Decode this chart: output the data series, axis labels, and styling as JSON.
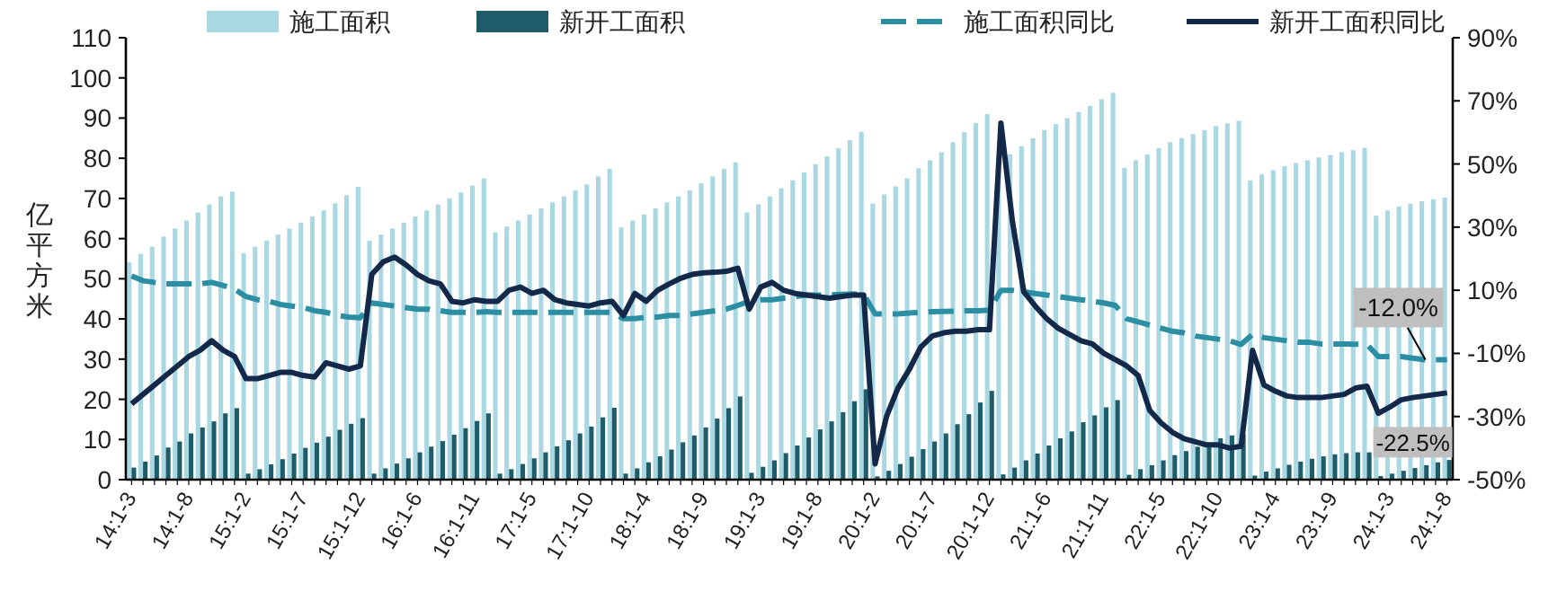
{
  "chart_data": {
    "type": "bar",
    "ylabel": "亿平方米",
    "legend": "top",
    "categories": [
      "14:1-3",
      null,
      null,
      null,
      null,
      "14:1-8",
      null,
      null,
      null,
      null,
      "15:1-2",
      null,
      null,
      null,
      null,
      "15:1-7",
      null,
      null,
      null,
      null,
      "15:1-12",
      null,
      null,
      null,
      null,
      "16:1-6",
      null,
      null,
      null,
      null,
      "16:1-11",
      null,
      null,
      null,
      null,
      "17:1-5",
      null,
      null,
      null,
      null,
      "17:1-10",
      null,
      null,
      null,
      null,
      "18:1-4",
      null,
      null,
      null,
      null,
      "18:1-9",
      null,
      null,
      null,
      null,
      "19:1-3",
      null,
      null,
      null,
      null,
      "19:1-8",
      null,
      null,
      null,
      null,
      "20:1-2",
      null,
      null,
      null,
      null,
      "20:1-7",
      null,
      null,
      null,
      null,
      "20:1-12",
      null,
      null,
      null,
      null,
      "21:1-6",
      null,
      null,
      null,
      null,
      "21:1-11",
      null,
      null,
      null,
      null,
      "22:1-5",
      null,
      null,
      null,
      null,
      "22:1-10",
      null,
      null,
      null,
      null,
      "23:1-4",
      null,
      null,
      null,
      null,
      "23:1-9",
      null,
      null,
      null,
      null,
      "24:1-3",
      null,
      null,
      null,
      null,
      "24:1-8"
    ],
    "ylim": [
      0,
      110
    ],
    "yticks": [
      0,
      10,
      20,
      30,
      40,
      50,
      60,
      70,
      80,
      90,
      100,
      110
    ],
    "y2lim": [
      -50,
      90
    ],
    "y2ticks": [
      {
        "value": -50,
        "label": "-50%"
      },
      {
        "value": -30,
        "label": "-30%"
      },
      {
        "value": -10,
        "label": "-10%"
      },
      {
        "value": 10,
        "label": "10%"
      },
      {
        "value": 30,
        "label": "30%"
      },
      {
        "value": 50,
        "label": "50%"
      },
      {
        "value": 70,
        "label": "70%"
      },
      {
        "value": 90,
        "label": "90%"
      }
    ],
    "series": [
      {
        "name": "施工面积",
        "color": "#a9d8e3",
        "values": [
          54.1,
          56.2,
          58,
          60.5,
          62.5,
          64.5,
          66.5,
          68.5,
          70.5,
          71.7,
          56.4,
          58,
          59.5,
          61,
          62.5,
          64,
          65.5,
          67,
          68.8,
          70.8,
          72.9,
          59.5,
          61,
          62.5,
          64,
          65.5,
          67,
          68.5,
          70,
          71.5,
          73.2,
          75,
          61.6,
          63,
          64.5,
          66,
          67.5,
          69,
          70.5,
          72,
          73.5,
          75.5,
          77.4,
          62.8,
          64.5,
          66,
          67.5,
          69,
          70.5,
          72,
          73.8,
          75.5,
          77.3,
          79,
          66.5,
          68.5,
          70.5,
          72.5,
          74.5,
          76.5,
          78.5,
          80.5,
          82.5,
          84.5,
          86.6,
          68.7,
          71,
          73,
          75,
          77.5,
          79.5,
          81.5,
          84,
          86.5,
          88.8,
          91,
          79,
          81,
          83,
          85,
          87,
          88.5,
          90,
          91.5,
          93,
          94.7,
          96.3,
          77.6,
          79.5,
          81,
          82.5,
          84,
          85,
          86,
          87,
          88,
          88.7,
          89.3,
          74.5,
          76,
          77,
          78,
          78.8,
          79.5,
          80.2,
          80.8,
          81.5,
          82,
          82.6,
          65.7,
          67,
          68,
          68.7,
          69.3,
          69.8,
          70.2
        ]
      },
      {
        "name": "新开工面积",
        "color": "#1f5c69",
        "values": [
          3,
          4.5,
          6,
          8,
          9.5,
          11.5,
          13,
          14.5,
          16.5,
          17.8,
          1.5,
          2.6,
          3.8,
          5.1,
          6.5,
          7.9,
          9.2,
          10.7,
          12.4,
          13.9,
          15.3,
          1.5,
          2.8,
          4,
          5.3,
          6.8,
          8.2,
          9.6,
          11.2,
          12.8,
          14.6,
          16.5,
          1.5,
          2.6,
          3.9,
          5.3,
          6.8,
          8.3,
          9.8,
          11.5,
          13.2,
          15.5,
          17.9,
          1.5,
          2.8,
          4.3,
          5.8,
          7.5,
          9.3,
          11,
          13,
          15.2,
          17.8,
          20.7,
          1.7,
          3.2,
          4.8,
          6.6,
          8.5,
          10.5,
          12.5,
          14.5,
          16.8,
          19.5,
          22.5,
          0.8,
          2.2,
          3.9,
          5.7,
          7.6,
          9.5,
          11.5,
          13.8,
          16.3,
          19.2,
          22.1,
          1.3,
          3,
          4.8,
          6.5,
          8.5,
          10.3,
          12,
          14.3,
          16,
          18,
          19.8,
          1.2,
          2.6,
          3.6,
          4.8,
          6.1,
          7.1,
          8.2,
          9.2,
          10.3,
          11,
          11.3,
          1,
          2,
          2.8,
          3.7,
          4.5,
          5.2,
          5.8,
          6.3,
          6.6,
          6.8,
          6.8,
          0.9,
          1.5,
          2.2,
          2.9,
          3.6,
          4.3,
          4.9
        ]
      },
      {
        "name": "施工面积同比",
        "type": "line",
        "axis": "y2",
        "line_style": "dashed",
        "color": "#2b8ea3",
        "values": [
          14.5,
          13,
          12.5,
          12,
          12,
          12,
          12,
          12.5,
          11.5,
          10.4,
          8,
          7,
          6.5,
          5.5,
          5,
          4.5,
          3.5,
          3,
          2,
          1.5,
          1.3,
          6,
          5.5,
          5,
          4.5,
          4,
          4,
          3.5,
          3,
          3,
          3,
          3.2,
          3,
          3,
          3,
          3,
          3,
          3,
          3,
          3,
          3,
          3,
          3,
          1,
          1,
          1.5,
          1.5,
          2,
          2,
          2.5,
          3,
          3.5,
          4,
          5.2,
          6.5,
          7,
          7,
          7.5,
          8,
          8.5,
          8.5,
          8.5,
          8.7,
          8.8,
          8.7,
          2.5,
          2.5,
          2.5,
          2.8,
          3,
          3.2,
          3.3,
          3.4,
          3.5,
          3.5,
          3.7,
          10,
          10,
          9.5,
          9,
          8.5,
          8,
          7.5,
          7,
          6.5,
          6,
          5.2,
          1,
          0,
          -1,
          -2,
          -3,
          -3.5,
          -4.5,
          -5,
          -5.5,
          -6,
          -7.2,
          -4,
          -5,
          -5.5,
          -6,
          -6.5,
          -6.5,
          -7,
          -7,
          -7,
          -7.1,
          -7.2,
          -11,
          -11,
          -11,
          -11.5,
          -12,
          -12,
          -12.0
        ]
      },
      {
        "name": "新开工面积同比",
        "type": "line",
        "axis": "y2",
        "line_style": "solid",
        "color": "#14294a",
        "values": [
          -26,
          -23,
          -20,
          -17,
          -14,
          -11,
          -9,
          -6,
          -9,
          -11,
          -18,
          -18,
          -17,
          -16,
          -16,
          -17,
          -17.5,
          -13,
          -14,
          -15,
          -14,
          15,
          19,
          20.5,
          18,
          15,
          13,
          12,
          6.5,
          6,
          7,
          6.5,
          6.5,
          10,
          11,
          9,
          10,
          7,
          6,
          5.5,
          5,
          6,
          6.5,
          2,
          9,
          6.5,
          10,
          12,
          13.8,
          15,
          15.5,
          15.7,
          16,
          17,
          4,
          11,
          12.5,
          10,
          9,
          8.5,
          8,
          7.5,
          8,
          8.5,
          8.5,
          -45,
          -30,
          -21,
          -15,
          -8,
          -4.5,
          -3.5,
          -3,
          -3,
          -2.5,
          -2.5,
          63,
          32,
          9.5,
          5,
          1,
          -2,
          -4,
          -6,
          -7,
          -10,
          -12,
          -14,
          -17,
          -28,
          -32,
          -35,
          -37,
          -38,
          -39,
          -39,
          -40,
          -39.4,
          -9,
          -20,
          -22,
          -23.5,
          -24,
          -24,
          -24,
          -23.5,
          -23,
          -21,
          -20.4,
          -29,
          -27,
          -24.7,
          -24,
          -23.5,
          -23,
          -22.5
        ]
      }
    ],
    "annotations": [
      "-12.0%",
      "-22.5%"
    ]
  }
}
